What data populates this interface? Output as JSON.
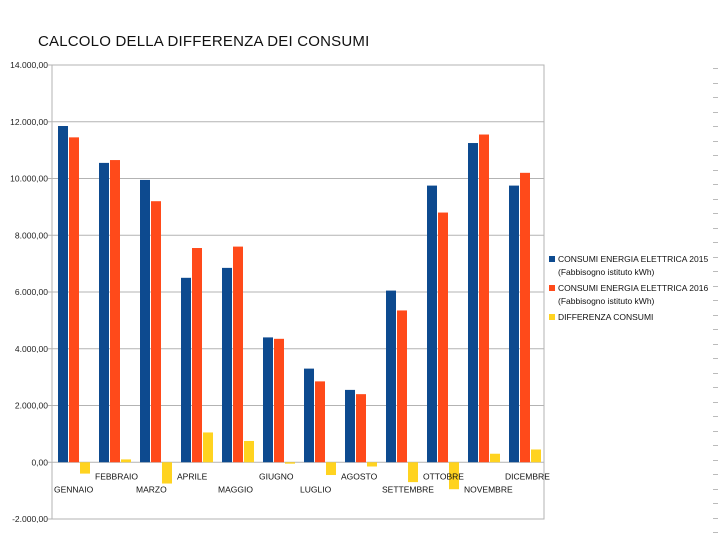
{
  "page_title": "CALCOLO DELLA DIFFERENZA DEI CONSUMI",
  "chart_data": {
    "type": "bar",
    "categories": [
      "GENNAIO",
      "FEBBRAIO",
      "MARZO",
      "APRILE",
      "MAGGIO",
      "GIUGNO",
      "LUGLIO",
      "AGOSTO",
      "SETTEMBRE",
      "OTTOBRE",
      "NOVEMBRE",
      "DICEMBRE"
    ],
    "series": [
      {
        "name": "CONSUMI ENERGIA ELETTRICA 2015",
        "name_line2": "(Fabbisogno istituto kWh)",
        "color": "#0d4a8f",
        "values": [
          11850,
          10550,
          9950,
          6500,
          6850,
          4400,
          3300,
          2550,
          6050,
          9750,
          11250,
          9750
        ]
      },
      {
        "name": "CONSUMI ENERGIA ELETTRICA 2016",
        "name_line2": "(Fabbisogno istituto kWh)",
        "color": "#ff4a1a",
        "values": [
          11450,
          10650,
          9200,
          7550,
          7600,
          4350,
          2850,
          2400,
          5350,
          8800,
          11550,
          10200
        ]
      },
      {
        "name": "DIFFERENZA CONSUMI",
        "name_line2": "",
        "color": "#ffd320",
        "values": [
          -400,
          100,
          -750,
          1050,
          750,
          -50,
          -450,
          -150,
          -700,
          -950,
          300,
          450
        ]
      }
    ],
    "y_ticks": [
      "14.000,00",
      "12.000,00",
      "10.000,00",
      "8.000,00",
      "6.000,00",
      "4.000,00",
      "2.000,00",
      "0,00",
      "-2.000,00"
    ],
    "ylim": [
      -2000,
      14000
    ],
    "y_step": 2000,
    "grid": true,
    "legend_position": "right",
    "title": "",
    "xlabel": "",
    "ylabel": ""
  }
}
